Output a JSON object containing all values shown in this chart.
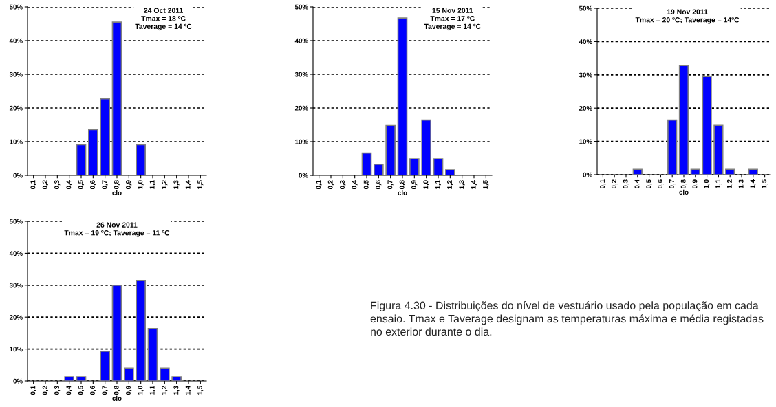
{
  "chart_data": [
    {
      "type": "bar",
      "title": "24 Oct 2011\nTmax = 18 ºC\nTaverage = 14 ºC",
      "xlabel": "clo",
      "categories": [
        "0,1",
        "0,2",
        "0,3",
        "0,4",
        "0,5",
        "0,6",
        "0,7",
        "0,8",
        "0,9",
        "1,0",
        "1,1",
        "1,2",
        "1,3",
        "1,4",
        "1,5"
      ],
      "values": [
        0,
        0,
        0,
        0,
        9.1,
        13.6,
        22.7,
        45.5,
        0,
        9.1,
        0,
        0,
        0,
        0,
        0
      ],
      "color": "#0000ff",
      "ylim": [
        0,
        50
      ],
      "yticks": [
        {
          "value": 0,
          "label": "0%"
        },
        {
          "value": 10,
          "label": "10%"
        },
        {
          "value": 20,
          "label": "20%"
        },
        {
          "value": 30,
          "label": "30%"
        },
        {
          "value": 40,
          "label": "40%"
        },
        {
          "value": 50,
          "label": "50%"
        }
      ],
      "grid": "y",
      "legend": false
    },
    {
      "type": "bar",
      "title": "15 Nov 2011\nTmax = 17 ºC\nTaverage = 14 ºC",
      "xlabel": "clo",
      "categories": [
        "0,1",
        "0,2",
        "0,3",
        "0,4",
        "0,5",
        "0,6",
        "0,7",
        "0,8",
        "0,9",
        "1,0",
        "1,1",
        "1,2",
        "1,3",
        "1,4",
        "1,5"
      ],
      "values": [
        0,
        0,
        0,
        0,
        6.6,
        3.3,
        14.8,
        46.7,
        4.9,
        16.4,
        4.9,
        1.6,
        0,
        0,
        0
      ],
      "color": "#0000ff",
      "ylim": [
        0,
        50
      ],
      "yticks": [
        {
          "value": 0,
          "label": "0%"
        },
        {
          "value": 10,
          "label": "10%"
        },
        {
          "value": 20,
          "label": "20%"
        },
        {
          "value": 30,
          "label": "30%"
        },
        {
          "value": 40,
          "label": "40%"
        },
        {
          "value": 50,
          "label": "50%"
        }
      ],
      "grid": "y",
      "legend": false
    },
    {
      "type": "bar",
      "title": "19 Nov 2011\nTmax = 20 ºC; Taverage = 14ºC",
      "xlabel": "clo",
      "categories": [
        "0,1",
        "0,2",
        "0,3",
        "0,4",
        "0,5",
        "0,6",
        "0,7",
        "0,8",
        "0,9",
        "1,0",
        "1,1",
        "1,2",
        "1,3",
        "1,4",
        "1,5"
      ],
      "values": [
        0,
        0,
        0,
        1.6,
        0,
        0,
        16.4,
        32.8,
        1.6,
        29.5,
        14.8,
        1.6,
        0,
        1.6,
        0
      ],
      "color": "#0000ff",
      "ylim": [
        0,
        50
      ],
      "yticks": [
        {
          "value": 0,
          "label": "0%"
        },
        {
          "value": 10,
          "label": "10%"
        },
        {
          "value": 20,
          "label": "20%"
        },
        {
          "value": 30,
          "label": "30%"
        },
        {
          "value": 40,
          "label": "40%"
        },
        {
          "value": 50,
          "label": "50%"
        }
      ],
      "grid": "y",
      "legend": false
    },
    {
      "type": "bar",
      "title": "26 Nov 2011\nTmax = 19 ºC; Taverage = 11 ºC",
      "xlabel": "clo",
      "categories": [
        "0,1",
        "0,2",
        "0,3",
        "0,4",
        "0,5",
        "0,6",
        "0,7",
        "0,8",
        "0,9",
        "1,0",
        "1,1",
        "1,2",
        "1,3",
        "1,4",
        "1,5"
      ],
      "values": [
        0,
        0,
        0,
        1.3,
        1.3,
        0,
        9.3,
        30.0,
        4.0,
        31.5,
        16.4,
        4.0,
        1.3,
        0,
        0
      ],
      "color": "#0000ff",
      "ylim": [
        0,
        50
      ],
      "yticks": [
        {
          "value": 0,
          "label": "0%"
        },
        {
          "value": 10,
          "label": "10%"
        },
        {
          "value": 20,
          "label": "20%"
        },
        {
          "value": 30,
          "label": "30%"
        },
        {
          "value": 40,
          "label": "40%"
        },
        {
          "value": 50,
          "label": "50%"
        }
      ],
      "grid": "y",
      "legend": false,
      "annotations": [
        "Figura 4.30 - Distribuições do nível de vestuário usado pela população em cada ensaio. Tmax e Taverage designam as temperaturas máxima e média registadas no exterior durante o dia."
      ]
    }
  ]
}
